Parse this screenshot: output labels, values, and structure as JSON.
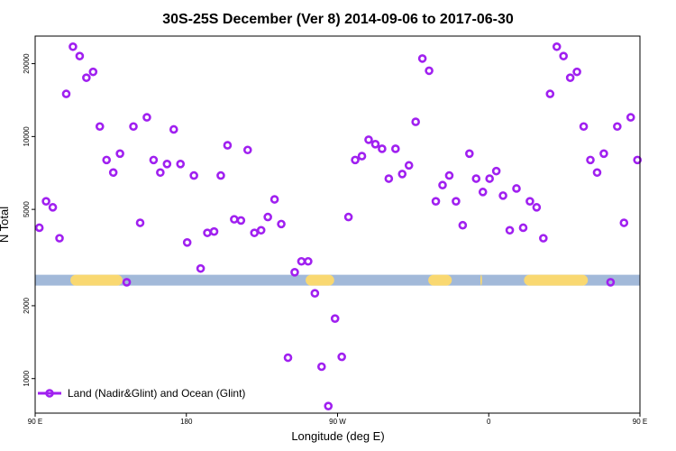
{
  "chart_data": {
    "type": "scatter",
    "title": "30S-25S December (Ver 8)   2014-09-06 to 2017-06-30",
    "xlabel": "Longitude (deg E)",
    "ylabel": "N Total",
    "y_scale": "log",
    "xlim": [
      90,
      450
    ],
    "ylim": [
      720,
      26000
    ],
    "x_ticks": [
      {
        "value": 90,
        "label": "90 E"
      },
      {
        "value": 180,
        "label": "180"
      },
      {
        "value": 270,
        "label": "90 W"
      },
      {
        "value": 360,
        "label": "0"
      },
      {
        "value": 450,
        "label": "90 E"
      }
    ],
    "y_ticks": [
      {
        "value": 1000,
        "label": "1000"
      },
      {
        "value": 2000,
        "label": "2000"
      },
      {
        "value": 5000,
        "label": "5000"
      },
      {
        "value": 10000,
        "label": "10000"
      },
      {
        "value": 20000,
        "label": "20000"
      }
    ],
    "legend": {
      "label": "Land (Nadir&Glint) and Ocean (Glint)",
      "position": "bottom-left"
    },
    "colors": {
      "marker": "#a020f0",
      "ocean_band": "#a2b9d9",
      "land_band": "#f9d871"
    },
    "surface_band": {
      "y_value": 2550,
      "ocean_color": "#a2b9d9",
      "land_color": "#f9d871",
      "land_segments": [
        [
          111,
          142
        ],
        [
          251,
          268
        ],
        [
          324,
          338
        ],
        [
          355,
          356
        ],
        [
          381,
          419
        ]
      ]
    },
    "series": [
      {
        "name": "Land (Nadir&Glint) and Ocean (Glint)",
        "points": [
          {
            "x": 92.5,
            "y": 4200
          },
          {
            "x": 96.5,
            "y": 5400
          },
          {
            "x": 100.5,
            "y": 5100
          },
          {
            "x": 104.5,
            "y": 3800
          },
          {
            "x": 108.5,
            "y": 15000
          },
          {
            "x": 112.5,
            "y": 23500
          },
          {
            "x": 116.5,
            "y": 21500
          },
          {
            "x": 120.5,
            "y": 17500
          },
          {
            "x": 124.5,
            "y": 18500
          },
          {
            "x": 128.5,
            "y": 11000
          },
          {
            "x": 132.5,
            "y": 8000
          },
          {
            "x": 136.5,
            "y": 7100
          },
          {
            "x": 140.5,
            "y": 8500
          },
          {
            "x": 144.5,
            "y": 2500
          },
          {
            "x": 148.5,
            "y": 11000
          },
          {
            "x": 152.5,
            "y": 4400
          },
          {
            "x": 156.5,
            "y": 12000
          },
          {
            "x": 160.5,
            "y": 8000
          },
          {
            "x": 164.5,
            "y": 7100
          },
          {
            "x": 168.5,
            "y": 7700
          },
          {
            "x": 172.5,
            "y": 10700
          },
          {
            "x": 176.5,
            "y": 7700
          },
          {
            "x": 180.5,
            "y": 3650
          },
          {
            "x": 184.5,
            "y": 6900
          },
          {
            "x": 188.5,
            "y": 2850
          },
          {
            "x": 192.5,
            "y": 4000
          },
          {
            "x": 196.5,
            "y": 4050
          },
          {
            "x": 200.5,
            "y": 6900
          },
          {
            "x": 204.5,
            "y": 9200
          },
          {
            "x": 208.5,
            "y": 4550
          },
          {
            "x": 212.5,
            "y": 4500
          },
          {
            "x": 216.5,
            "y": 8800
          },
          {
            "x": 220.5,
            "y": 4000
          },
          {
            "x": 224.5,
            "y": 4100
          },
          {
            "x": 228.5,
            "y": 4650
          },
          {
            "x": 232.5,
            "y": 5500
          },
          {
            "x": 236.5,
            "y": 4350
          },
          {
            "x": 240.5,
            "y": 1220
          },
          {
            "x": 244.5,
            "y": 2750
          },
          {
            "x": 248.5,
            "y": 3050
          },
          {
            "x": 252.5,
            "y": 3050
          },
          {
            "x": 256.5,
            "y": 2250
          },
          {
            "x": 260.5,
            "y": 1120
          },
          {
            "x": 264.5,
            "y": 770
          },
          {
            "x": 268.5,
            "y": 1770
          },
          {
            "x": 272.5,
            "y": 1230
          },
          {
            "x": 276.5,
            "y": 4650
          },
          {
            "x": 280.5,
            "y": 8000
          },
          {
            "x": 284.5,
            "y": 8300
          },
          {
            "x": 288.5,
            "y": 9700
          },
          {
            "x": 292.5,
            "y": 9300
          },
          {
            "x": 296.5,
            "y": 8900
          },
          {
            "x": 300.5,
            "y": 6700
          },
          {
            "x": 304.5,
            "y": 8900
          },
          {
            "x": 308.5,
            "y": 7000
          },
          {
            "x": 312.5,
            "y": 7600
          },
          {
            "x": 316.5,
            "y": 11500
          },
          {
            "x": 320.5,
            "y": 21000
          },
          {
            "x": 324.5,
            "y": 18700
          },
          {
            "x": 328.5,
            "y": 5400
          },
          {
            "x": 332.5,
            "y": 6300
          },
          {
            "x": 336.5,
            "y": 6900
          },
          {
            "x": 340.5,
            "y": 5400
          },
          {
            "x": 344.5,
            "y": 4300
          },
          {
            "x": 348.5,
            "y": 8500
          },
          {
            "x": 352.5,
            "y": 6700
          },
          {
            "x": 356.5,
            "y": 5900
          },
          {
            "x": 360.5,
            "y": 6700
          },
          {
            "x": 364.5,
            "y": 7200
          },
          {
            "x": 368.5,
            "y": 5700
          },
          {
            "x": 372.5,
            "y": 4100
          },
          {
            "x": 376.5,
            "y": 6100
          },
          {
            "x": 380.5,
            "y": 4200
          },
          {
            "x": 384.5,
            "y": 5400
          },
          {
            "x": 388.5,
            "y": 5100
          },
          {
            "x": 392.5,
            "y": 3800
          },
          {
            "x": 396.5,
            "y": 15000
          },
          {
            "x": 400.5,
            "y": 23500
          },
          {
            "x": 404.5,
            "y": 21500
          },
          {
            "x": 408.5,
            "y": 17500
          },
          {
            "x": 412.5,
            "y": 18500
          },
          {
            "x": 416.5,
            "y": 11000
          },
          {
            "x": 420.5,
            "y": 8000
          },
          {
            "x": 424.5,
            "y": 7100
          },
          {
            "x": 428.5,
            "y": 8500
          },
          {
            "x": 432.5,
            "y": 2500
          },
          {
            "x": 436.5,
            "y": 11000
          },
          {
            "x": 440.5,
            "y": 4400
          },
          {
            "x": 444.5,
            "y": 12000
          },
          {
            "x": 448.5,
            "y": 8000
          }
        ]
      }
    ]
  }
}
